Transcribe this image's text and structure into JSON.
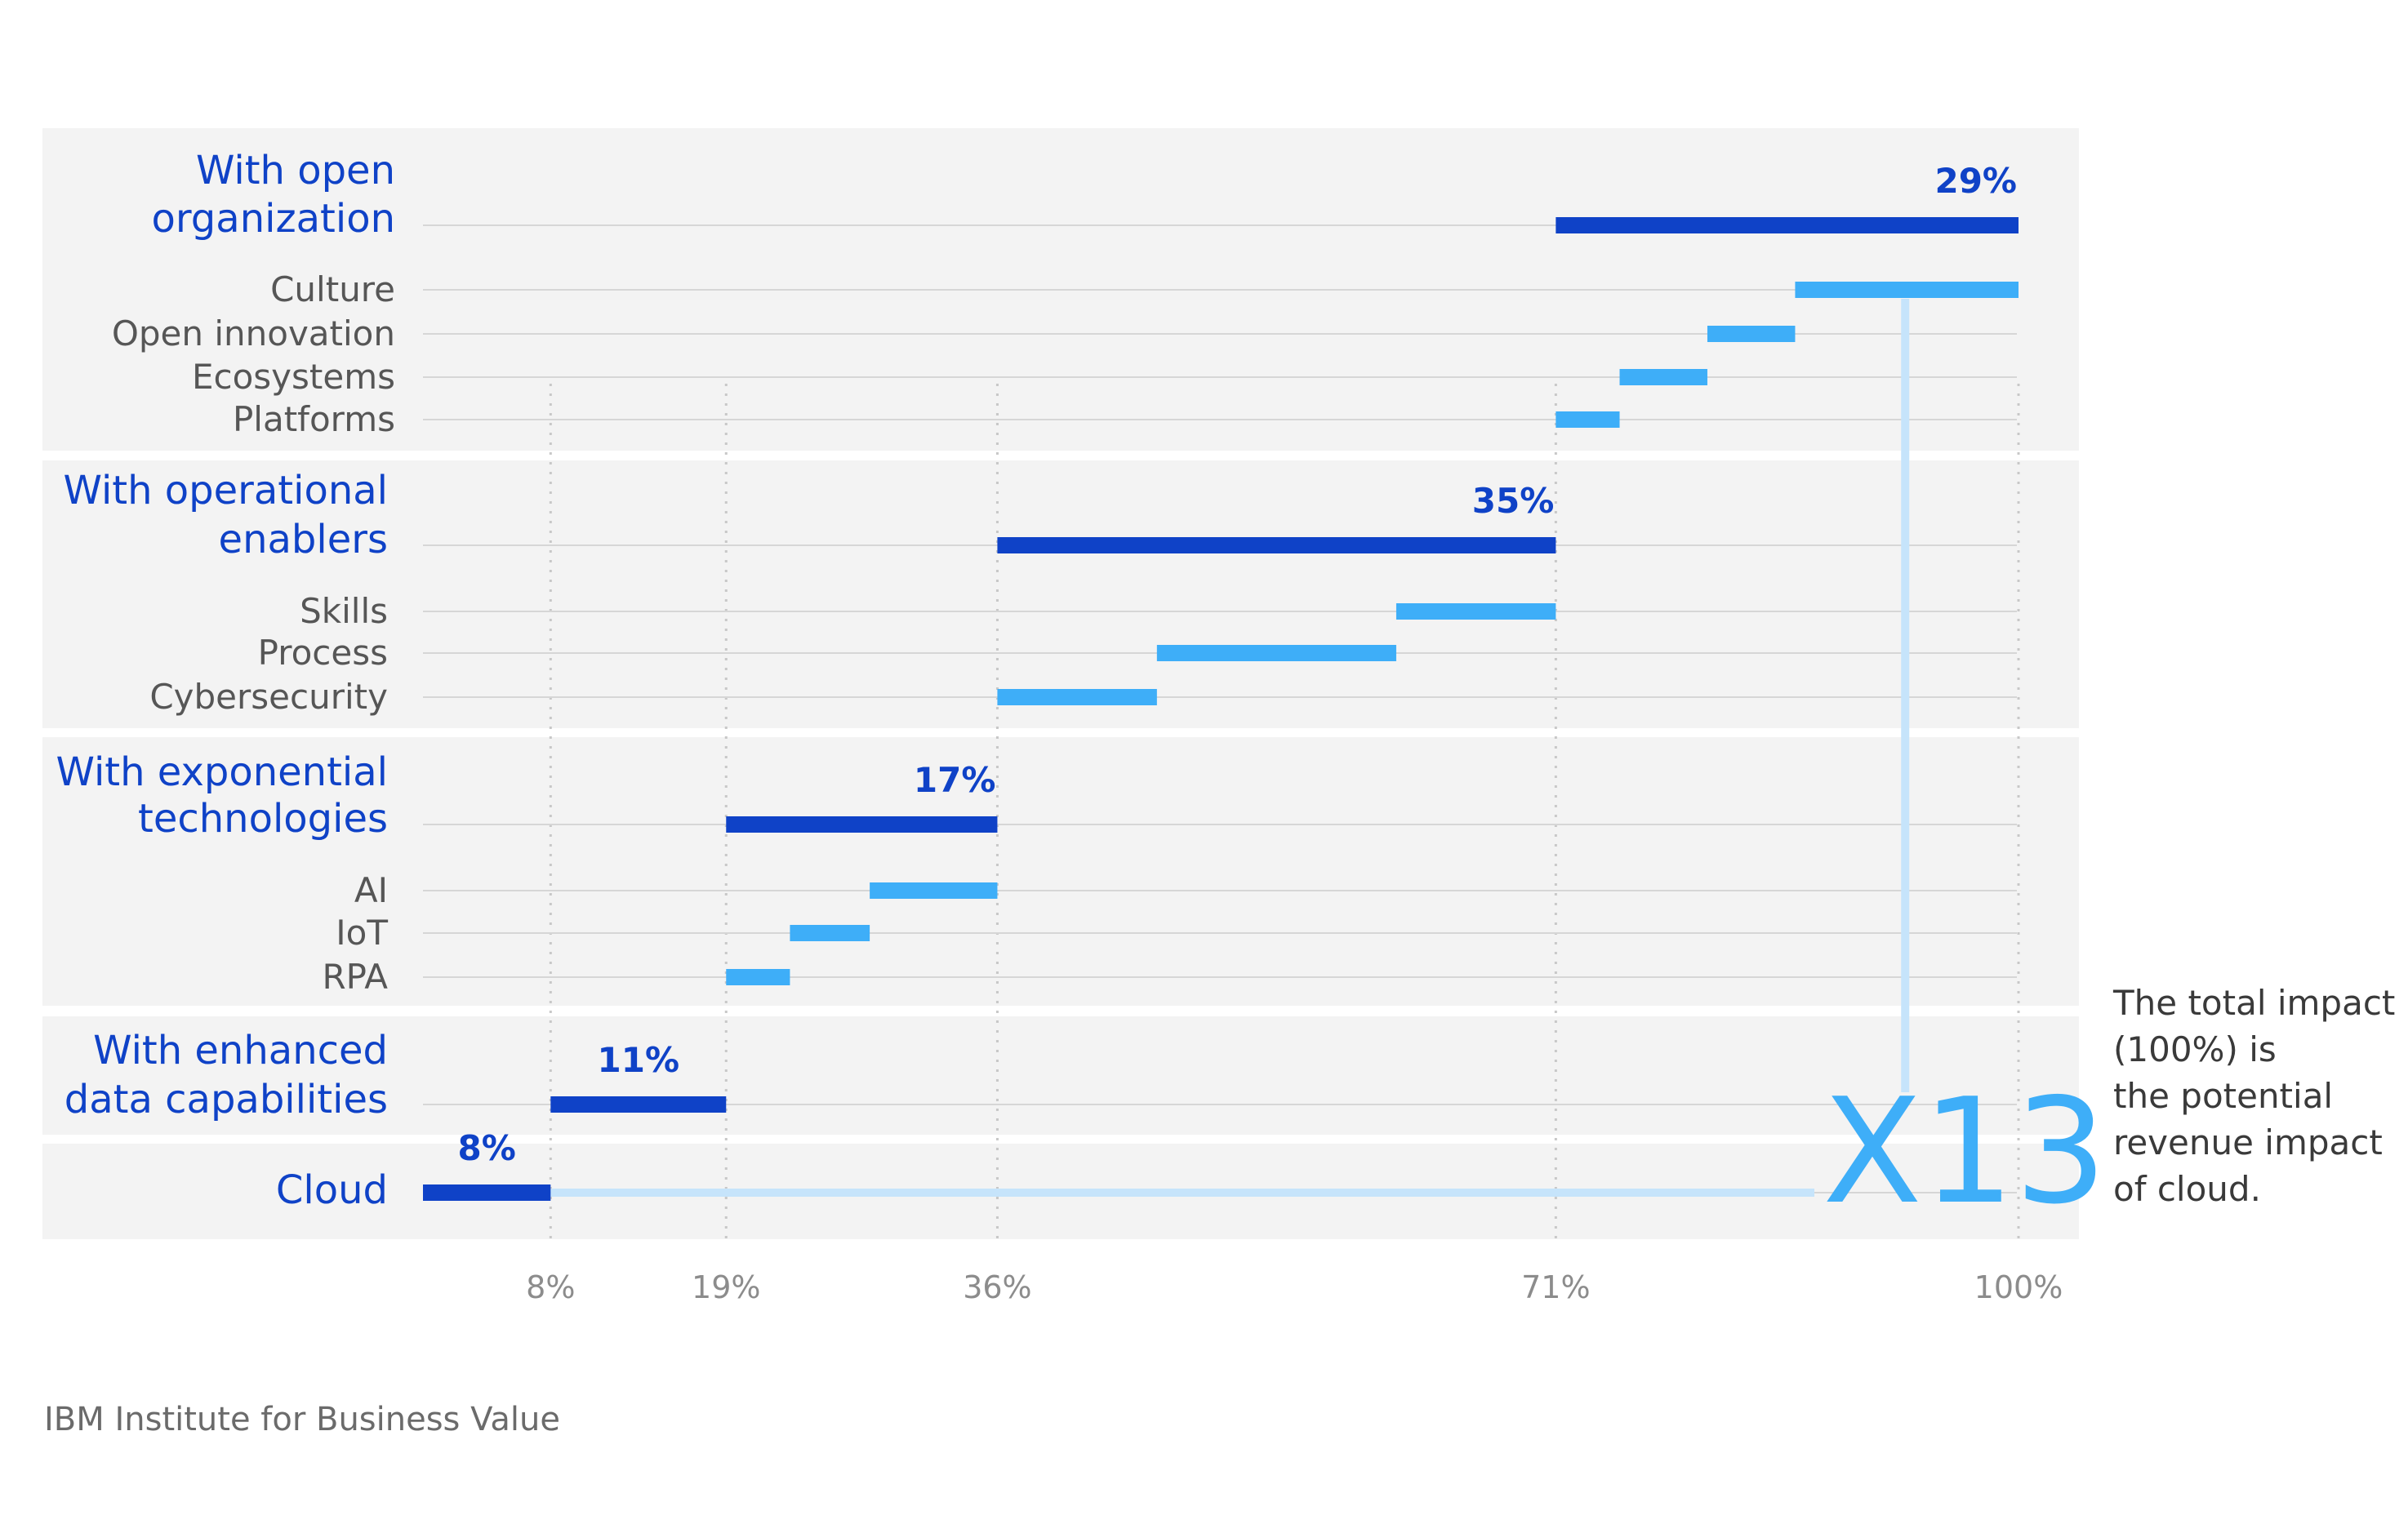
{
  "chart_data": {
    "type": "waterfall-bar",
    "x_axis": {
      "range": [
        0,
        100
      ],
      "ticks": [
        {
          "value": 8,
          "label": "8%"
        },
        {
          "value": 19,
          "label": "19%"
        },
        {
          "value": 36,
          "label": "36%"
        },
        {
          "value": 71,
          "label": "71%"
        },
        {
          "value": 100,
          "label": "100%"
        }
      ]
    },
    "groups": [
      {
        "label_lines": [
          "With open",
          "organization"
        ],
        "total": {
          "start": 71,
          "end": 100,
          "label": "29%"
        },
        "items": [
          {
            "label": "Culture",
            "start": 86,
            "end": 100
          },
          {
            "label": "Open innovation",
            "start": 80.5,
            "end": 86
          },
          {
            "label": "Ecosystems",
            "start": 75,
            "end": 80.5
          },
          {
            "label": "Platforms",
            "start": 71,
            "end": 75
          }
        ]
      },
      {
        "label_lines": [
          "With operational",
          "enablers"
        ],
        "total": {
          "start": 36,
          "end": 71,
          "label": "35%"
        },
        "items": [
          {
            "label": "Skills",
            "start": 61,
            "end": 71
          },
          {
            "label": "Process",
            "start": 46,
            "end": 61
          },
          {
            "label": "Cybersecurity",
            "start": 36,
            "end": 46
          }
        ]
      },
      {
        "label_lines": [
          "With exponential",
          "technologies"
        ],
        "total": {
          "start": 19,
          "end": 36,
          "label": "17%"
        },
        "items": [
          {
            "label": "AI",
            "start": 28,
            "end": 36
          },
          {
            "label": "IoT",
            "start": 23,
            "end": 28
          },
          {
            "label": "RPA",
            "start": 19,
            "end": 23
          }
        ]
      },
      {
        "label_lines": [
          "With enhanced",
          "data capabilities"
        ],
        "total": {
          "start": 8,
          "end": 19,
          "label": "11%"
        },
        "items": []
      },
      {
        "label_lines": [
          "Cloud"
        ],
        "total": {
          "start": 0,
          "end": 8,
          "label": "8%"
        },
        "items": []
      }
    ],
    "multiplier": "X13",
    "colors": {
      "total_bar": "#0f42c7",
      "item_bar": "#3eaef8",
      "connector": "#c6e4fb",
      "panel": "#f3f3f3"
    }
  },
  "annotation": {
    "lines": [
      "The total impact",
      "(100%) is",
      "the potential",
      "revenue impact",
      "of cloud."
    ]
  },
  "source": "IBM Institute for Business Value"
}
